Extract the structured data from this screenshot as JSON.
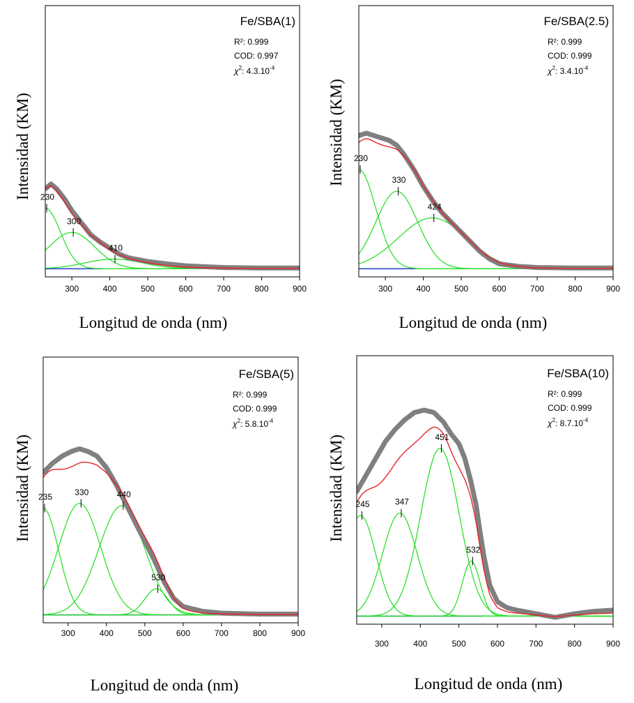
{
  "chart_data": [
    {
      "type": "line",
      "title": "Fe/SBA(1)",
      "xlabel": "Longitud de onda (nm)",
      "ylabel": "Intensidad (KM)",
      "xlim": [
        230,
        900
      ],
      "ylim": [
        0,
        1
      ],
      "xticks": [
        300,
        400,
        500,
        600,
        700,
        800,
        900
      ],
      "grid": false,
      "stats": {
        "r2": "R²: 0.999",
        "cod": "COD: 0.997",
        "chi2_prefix": "χ",
        "chi2_sup": "2",
        "chi2_val": ": 4.3.10",
        "chi2_exp": "-4"
      },
      "peaks": [
        {
          "label": "230",
          "center": 230,
          "height": 0.25,
          "width": 40
        },
        {
          "label": "300",
          "center": 300,
          "height": 0.15,
          "width": 60
        },
        {
          "label": "410",
          "center": 410,
          "height": 0.04,
          "width": 75
        }
      ],
      "experimental": [
        [
          230,
          0.33
        ],
        [
          245,
          0.35
        ],
        [
          260,
          0.33
        ],
        [
          280,
          0.29
        ],
        [
          300,
          0.24
        ],
        [
          325,
          0.19
        ],
        [
          350,
          0.14
        ],
        [
          375,
          0.11
        ],
        [
          400,
          0.085
        ],
        [
          425,
          0.06
        ],
        [
          450,
          0.045
        ],
        [
          500,
          0.03
        ],
        [
          550,
          0.02
        ],
        [
          600,
          0.012
        ],
        [
          700,
          0.005
        ],
        [
          800,
          0.003
        ],
        [
          900,
          0.003
        ]
      ],
      "colors": {
        "experimental": "#808080",
        "fit": "#e8232a",
        "components": "#1cdf1c",
        "baseline": "#2c3fcf"
      }
    },
    {
      "type": "line",
      "title": "Fe/SBA(2.5)",
      "xlabel": "Longitud de onda (nm)",
      "ylabel": "Intensidad (KM)",
      "xlim": [
        230,
        900
      ],
      "ylim": [
        0,
        1
      ],
      "xticks": [
        300,
        400,
        500,
        600,
        700,
        800,
        900
      ],
      "grid": false,
      "stats": {
        "r2": "R²: 0.999",
        "cod": "COD: 0.999",
        "chi2_prefix": "χ",
        "chi2_sup": "2",
        "chi2_val": ": 3.4.10",
        "chi2_exp": "-4"
      },
      "peaks": [
        {
          "label": "230",
          "center": 230,
          "height": 0.41,
          "width": 45
        },
        {
          "label": "330",
          "center": 330,
          "height": 0.32,
          "width": 55
        },
        {
          "label": "424",
          "center": 424,
          "height": 0.21,
          "width": 90
        }
      ],
      "experimental": [
        [
          230,
          0.55
        ],
        [
          250,
          0.56
        ],
        [
          270,
          0.55
        ],
        [
          290,
          0.54
        ],
        [
          310,
          0.53
        ],
        [
          330,
          0.51
        ],
        [
          350,
          0.47
        ],
        [
          375,
          0.41
        ],
        [
          400,
          0.34
        ],
        [
          425,
          0.28
        ],
        [
          450,
          0.23
        ],
        [
          475,
          0.19
        ],
        [
          500,
          0.15
        ],
        [
          525,
          0.11
        ],
        [
          550,
          0.07
        ],
        [
          575,
          0.04
        ],
        [
          600,
          0.02
        ],
        [
          650,
          0.01
        ],
        [
          700,
          0.005
        ],
        [
          800,
          0.003
        ],
        [
          900,
          0.003
        ]
      ],
      "colors": {
        "experimental": "#808080",
        "fit": "#e8232a",
        "components": "#1cdf1c",
        "baseline": "#2c3fcf"
      }
    },
    {
      "type": "line",
      "title": "Fe/SBA(5)",
      "xlabel": "Longitud de onda (nm)",
      "ylabel": "Intensidad (KM)",
      "xlim": [
        235,
        900
      ],
      "ylim": [
        0,
        1
      ],
      "xticks": [
        300,
        400,
        500,
        600,
        700,
        800,
        900
      ],
      "grid": false,
      "stats": {
        "r2": "R²: 0.999",
        "cod": "COD: 0.999",
        "chi2_prefix": "χ",
        "chi2_sup": "2",
        "chi2_val": ": 5.8.10",
        "chi2_exp": "-4"
      },
      "peaks": [
        {
          "label": "235",
          "center": 235,
          "height": 0.45,
          "width": 40
        },
        {
          "label": "330",
          "center": 330,
          "height": 0.47,
          "width": 55
        },
        {
          "label": "440",
          "center": 440,
          "height": 0.46,
          "width": 60
        },
        {
          "label": "530",
          "center": 530,
          "height": 0.11,
          "width": 30
        }
      ],
      "experimental": [
        [
          235,
          0.6
        ],
        [
          260,
          0.64
        ],
        [
          285,
          0.67
        ],
        [
          310,
          0.69
        ],
        [
          330,
          0.7
        ],
        [
          350,
          0.69
        ],
        [
          375,
          0.67
        ],
        [
          400,
          0.62
        ],
        [
          425,
          0.55
        ],
        [
          450,
          0.47
        ],
        [
          475,
          0.39
        ],
        [
          500,
          0.31
        ],
        [
          525,
          0.23
        ],
        [
          550,
          0.14
        ],
        [
          575,
          0.07
        ],
        [
          600,
          0.035
        ],
        [
          650,
          0.015
        ],
        [
          700,
          0.007
        ],
        [
          800,
          0.003
        ],
        [
          900,
          0.003
        ]
      ],
      "colors": {
        "experimental": "#808080",
        "fit": "#e8232a",
        "components": "#1cdf1c",
        "baseline": "#2c3fcf"
      }
    },
    {
      "type": "line",
      "title": "Fe/SBA(10)",
      "xlabel": "Longitud de onda (nm)",
      "ylabel": "Intensidad (KM)",
      "xlim": [
        235,
        900
      ],
      "ylim": [
        0,
        1
      ],
      "xticks": [
        300,
        400,
        500,
        600,
        700,
        800,
        900
      ],
      "grid": false,
      "stats": {
        "r2": "R²: 0.999",
        "cod": "COD: 0.999",
        "chi2_prefix": "χ",
        "chi2_sup": "2",
        "chi2_val": ": 8.7.10",
        "chi2_exp": "-4"
      },
      "peaks": [
        {
          "label": "245",
          "center": 245,
          "height": 0.42,
          "width": 40
        },
        {
          "label": "347",
          "center": 347,
          "height": 0.43,
          "width": 45
        },
        {
          "label": "451",
          "center": 451,
          "height": 0.7,
          "width": 50
        },
        {
          "label": "532",
          "center": 532,
          "height": 0.23,
          "width": 23
        }
      ],
      "experimental": [
        [
          235,
          0.52
        ],
        [
          260,
          0.59
        ],
        [
          285,
          0.66
        ],
        [
          310,
          0.73
        ],
        [
          335,
          0.78
        ],
        [
          360,
          0.82
        ],
        [
          385,
          0.85
        ],
        [
          410,
          0.86
        ],
        [
          435,
          0.85
        ],
        [
          460,
          0.81
        ],
        [
          480,
          0.76
        ],
        [
          500,
          0.72
        ],
        [
          515,
          0.66
        ],
        [
          530,
          0.57
        ],
        [
          545,
          0.46
        ],
        [
          555,
          0.35
        ],
        [
          565,
          0.25
        ],
        [
          580,
          0.13
        ],
        [
          600,
          0.06
        ],
        [
          625,
          0.035
        ],
        [
          650,
          0.025
        ],
        [
          700,
          0.01
        ],
        [
          750,
          -0.005
        ],
        [
          800,
          0.01
        ],
        [
          850,
          0.02
        ],
        [
          900,
          0.025
        ]
      ],
      "colors": {
        "experimental": "#808080",
        "fit": "#e8232a",
        "components": "#1cdf1c",
        "baseline": "#2c3fcf"
      }
    }
  ]
}
